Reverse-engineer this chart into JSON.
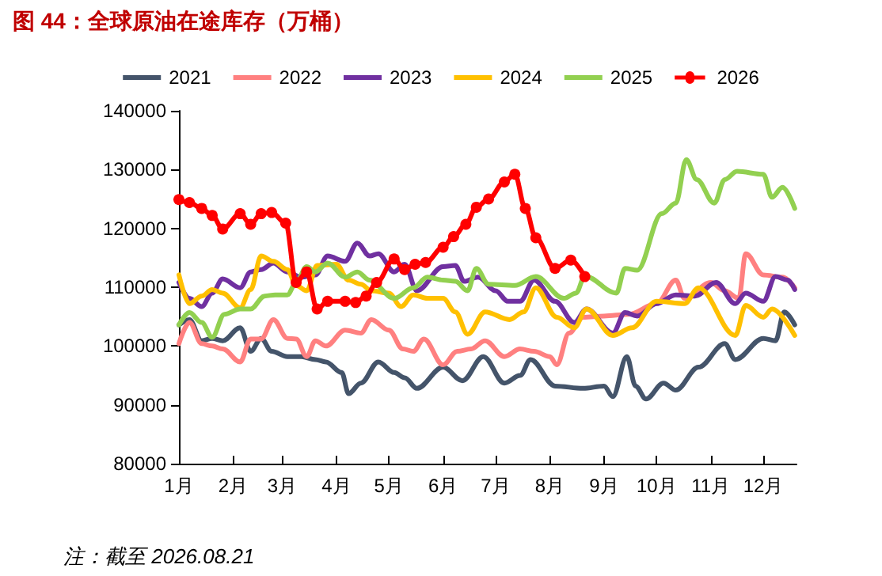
{
  "chart_data": {
    "type": "line",
    "title": "图 44：全球原油在途库存（万桶）",
    "annotations": [
      "注：截至 2026.08.21"
    ],
    "xlim": [
      "--01-01",
      "--12-20"
    ],
    "xticks": [
      {
        "value": "--01-01",
        "label": "1月"
      },
      {
        "value": "--02-01",
        "label": "2月"
      },
      {
        "value": "--03-01",
        "label": "3月"
      },
      {
        "value": "--04-01",
        "label": "4月"
      },
      {
        "value": "--05-01",
        "label": "5月"
      },
      {
        "value": "--06-01",
        "label": "6月"
      },
      {
        "value": "--07-01",
        "label": "7月"
      },
      {
        "value": "--08-01",
        "label": "8月"
      },
      {
        "value": "--09-01",
        "label": "9月"
      },
      {
        "value": "--10-01",
        "label": "10月"
      },
      {
        "value": "--11-01",
        "label": "11月"
      },
      {
        "value": "--12-01",
        "label": "12月"
      }
    ],
    "ylim": [
      80000,
      140000
    ],
    "yticks": [
      80000,
      90000,
      100000,
      110000,
      120000,
      130000,
      140000
    ],
    "grid": false,
    "legend": "top",
    "marker": "none",
    "series": [
      {
        "name": "2021",
        "color": "#44546a",
        "x": [
          "--01-01",
          "--01-07",
          "--01-14",
          "--01-20",
          "--01-26",
          "--02-05",
          "--02-11",
          "--02-17",
          "--02-23",
          "--03-04",
          "--03-12",
          "--03-20",
          "--03-26",
          "--04-04",
          "--04-08",
          "--04-15",
          "--04-25",
          "--05-04",
          "--05-10",
          "--05-17",
          "--06-01",
          "--06-12",
          "--06-24",
          "--07-06",
          "--07-15",
          "--07-21",
          "--08-04",
          "--08-20",
          "--09-01",
          "--09-06",
          "--09-14",
          "--09-19",
          "--09-25",
          "--10-05",
          "--10-12",
          "--10-25",
          "--11-09",
          "--11-15",
          "--12-01",
          "--12-08",
          "--12-13",
          "--12-19"
        ],
        "values": [
          103600,
          104500,
          100900,
          101300,
          100900,
          103100,
          99100,
          101300,
          99100,
          98200,
          98200,
          97700,
          97300,
          95500,
          91900,
          93700,
          97300,
          95500,
          94600,
          92800,
          96400,
          94100,
          98200,
          93700,
          95000,
          97700,
          93200,
          92800,
          93200,
          91400,
          98200,
          93200,
          91000,
          93700,
          92500,
          96400,
          100400,
          97700,
          101300,
          100900,
          105800,
          103600
        ]
      },
      {
        "name": "2022",
        "color": "#ff8080",
        "x": [
          "--01-01",
          "--01-07",
          "--01-14",
          "--01-20",
          "--01-26",
          "--02-05",
          "--02-11",
          "--02-17",
          "--02-24",
          "--03-04",
          "--03-09",
          "--03-15",
          "--03-20",
          "--03-26",
          "--04-06",
          "--04-15",
          "--04-21",
          "--05-01",
          "--05-09",
          "--05-15",
          "--05-21",
          "--06-01",
          "--06-09",
          "--06-17",
          "--06-25",
          "--07-06",
          "--07-15",
          "--07-23",
          "--08-01",
          "--08-05",
          "--08-12",
          "--08-20",
          "--09-01",
          "--09-15",
          "--10-01",
          "--10-12",
          "--10-17",
          "--11-01",
          "--11-09",
          "--11-17",
          "--11-21",
          "--12-01",
          "--12-12",
          "--12-19"
        ],
        "values": [
          100400,
          104000,
          100400,
          100000,
          99500,
          97300,
          101200,
          101200,
          104500,
          101300,
          101200,
          98200,
          100900,
          100000,
          102700,
          102200,
          104500,
          102700,
          99500,
          99100,
          101200,
          96800,
          99100,
          99500,
          100900,
          98200,
          99500,
          99100,
          98200,
          96800,
          102200,
          104900,
          105100,
          105400,
          107200,
          111200,
          108100,
          110800,
          109400,
          108100,
          115700,
          112100,
          111700,
          109900
        ]
      },
      {
        "name": "2023",
        "color": "#7030a0",
        "x": [
          "--01-01",
          "--01-07",
          "--01-14",
          "--01-20",
          "--01-26",
          "--02-05",
          "--02-11",
          "--02-17",
          "--02-24",
          "--03-04",
          "--03-12",
          "--03-20",
          "--03-27",
          "--04-06",
          "--04-13",
          "--04-20",
          "--04-25",
          "--05-04",
          "--05-10",
          "--05-17",
          "--06-01",
          "--06-08",
          "--06-13",
          "--06-21",
          "--07-01",
          "--07-08",
          "--07-15",
          "--07-23",
          "--08-04",
          "--08-15",
          "--08-22",
          "--09-06",
          "--09-13",
          "--09-20",
          "--10-01",
          "--10-12",
          "--10-23",
          "--11-04",
          "--11-15",
          "--11-21",
          "--12-01",
          "--12-08",
          "--12-15",
          "--12-19"
        ],
        "values": [
          110800,
          108100,
          106700,
          109000,
          111400,
          109900,
          112600,
          113000,
          114100,
          112600,
          111700,
          112100,
          115300,
          114400,
          117500,
          115300,
          115700,
          112600,
          113900,
          109400,
          113500,
          113700,
          111000,
          111700,
          109400,
          107600,
          107600,
          111200,
          107600,
          104000,
          106300,
          102200,
          105700,
          105100,
          107200,
          108700,
          108500,
          110800,
          107200,
          109000,
          107600,
          111800,
          111200,
          109600
        ]
      },
      {
        "name": "2024",
        "color": "#ffc000",
        "x": [
          "--01-01",
          "--01-07",
          "--01-14",
          "--01-20",
          "--01-26",
          "--02-05",
          "--02-11",
          "--02-17",
          "--02-24",
          "--03-04",
          "--03-09",
          "--03-15",
          "--03-21",
          "--04-01",
          "--04-08",
          "--04-15",
          "--04-21",
          "--05-01",
          "--05-08",
          "--05-15",
          "--05-23",
          "--06-01",
          "--06-08",
          "--06-15",
          "--06-25",
          "--07-09",
          "--07-17",
          "--07-24",
          "--08-05",
          "--08-15",
          "--08-22",
          "--09-06",
          "--09-17",
          "--10-01",
          "--10-17",
          "--10-25",
          "--11-15",
          "--11-21",
          "--12-01",
          "--12-06",
          "--12-19"
        ],
        "values": [
          112100,
          107200,
          108500,
          109600,
          109000,
          106500,
          109600,
          115300,
          114400,
          113000,
          110300,
          109400,
          113700,
          113900,
          111200,
          110500,
          109400,
          109000,
          106700,
          108700,
          108100,
          108100,
          105800,
          102000,
          105800,
          104500,
          105800,
          109900,
          104900,
          103100,
          106300,
          101800,
          103100,
          107600,
          107200,
          109900,
          101800,
          106900,
          104900,
          106300,
          101800
        ]
      },
      {
        "name": "2025",
        "color": "#92d050",
        "x": [
          "--01-01",
          "--01-07",
          "--01-14",
          "--01-20",
          "--01-27",
          "--02-05",
          "--02-11",
          "--02-19",
          "--02-25",
          "--03-04",
          "--03-09",
          "--03-15",
          "--03-20",
          "--03-27",
          "--04-06",
          "--04-13",
          "--04-20",
          "--05-04",
          "--05-15",
          "--05-23",
          "--06-01",
          "--06-08",
          "--06-15",
          "--06-20",
          "--06-27",
          "--07-12",
          "--07-24",
          "--08-09",
          "--08-16",
          "--08-21",
          "--09-08",
          "--09-13",
          "--09-20",
          "--10-04",
          "--10-12",
          "--10-18",
          "--10-24",
          "--11-03",
          "--11-09",
          "--11-16",
          "--12-01",
          "--12-06",
          "--12-12",
          "--12-19"
        ],
        "values": [
          103600,
          105700,
          104000,
          101500,
          105400,
          106300,
          106300,
          108500,
          108700,
          108700,
          110800,
          113500,
          112600,
          114100,
          111700,
          112600,
          111200,
          108100,
          109900,
          111700,
          111200,
          111000,
          109400,
          113200,
          110500,
          110300,
          111800,
          108100,
          109000,
          111900,
          109000,
          113200,
          112900,
          122500,
          124300,
          131700,
          128300,
          124300,
          128300,
          129700,
          129200,
          125300,
          127000,
          123400
        ]
      },
      {
        "name": "2026",
        "color": "#ff0000",
        "marker": "circle",
        "x": [
          "--01-01",
          "--01-07",
          "--01-14",
          "--01-20",
          "--01-26",
          "--02-05",
          "--02-11",
          "--02-17",
          "--02-23",
          "--03-03",
          "--03-09",
          "--03-15",
          "--03-21",
          "--03-27",
          "--04-06",
          "--04-12",
          "--04-18",
          "--04-24",
          "--05-04",
          "--05-10",
          "--05-16",
          "--05-22",
          "--06-01",
          "--06-07",
          "--06-14",
          "--06-20",
          "--06-27",
          "--07-06",
          "--07-12",
          "--07-18",
          "--07-24",
          "--08-04",
          "--08-13",
          "--08-21"
        ],
        "values": [
          124900,
          124400,
          123400,
          122200,
          119900,
          122500,
          120700,
          122500,
          122700,
          120900,
          110800,
          112600,
          106300,
          107600,
          107600,
          107400,
          108500,
          110800,
          114800,
          113000,
          113900,
          114200,
          116800,
          118600,
          120700,
          123600,
          125000,
          127900,
          129200,
          123400,
          118400,
          113200,
          114600,
          111800
        ]
      }
    ]
  }
}
